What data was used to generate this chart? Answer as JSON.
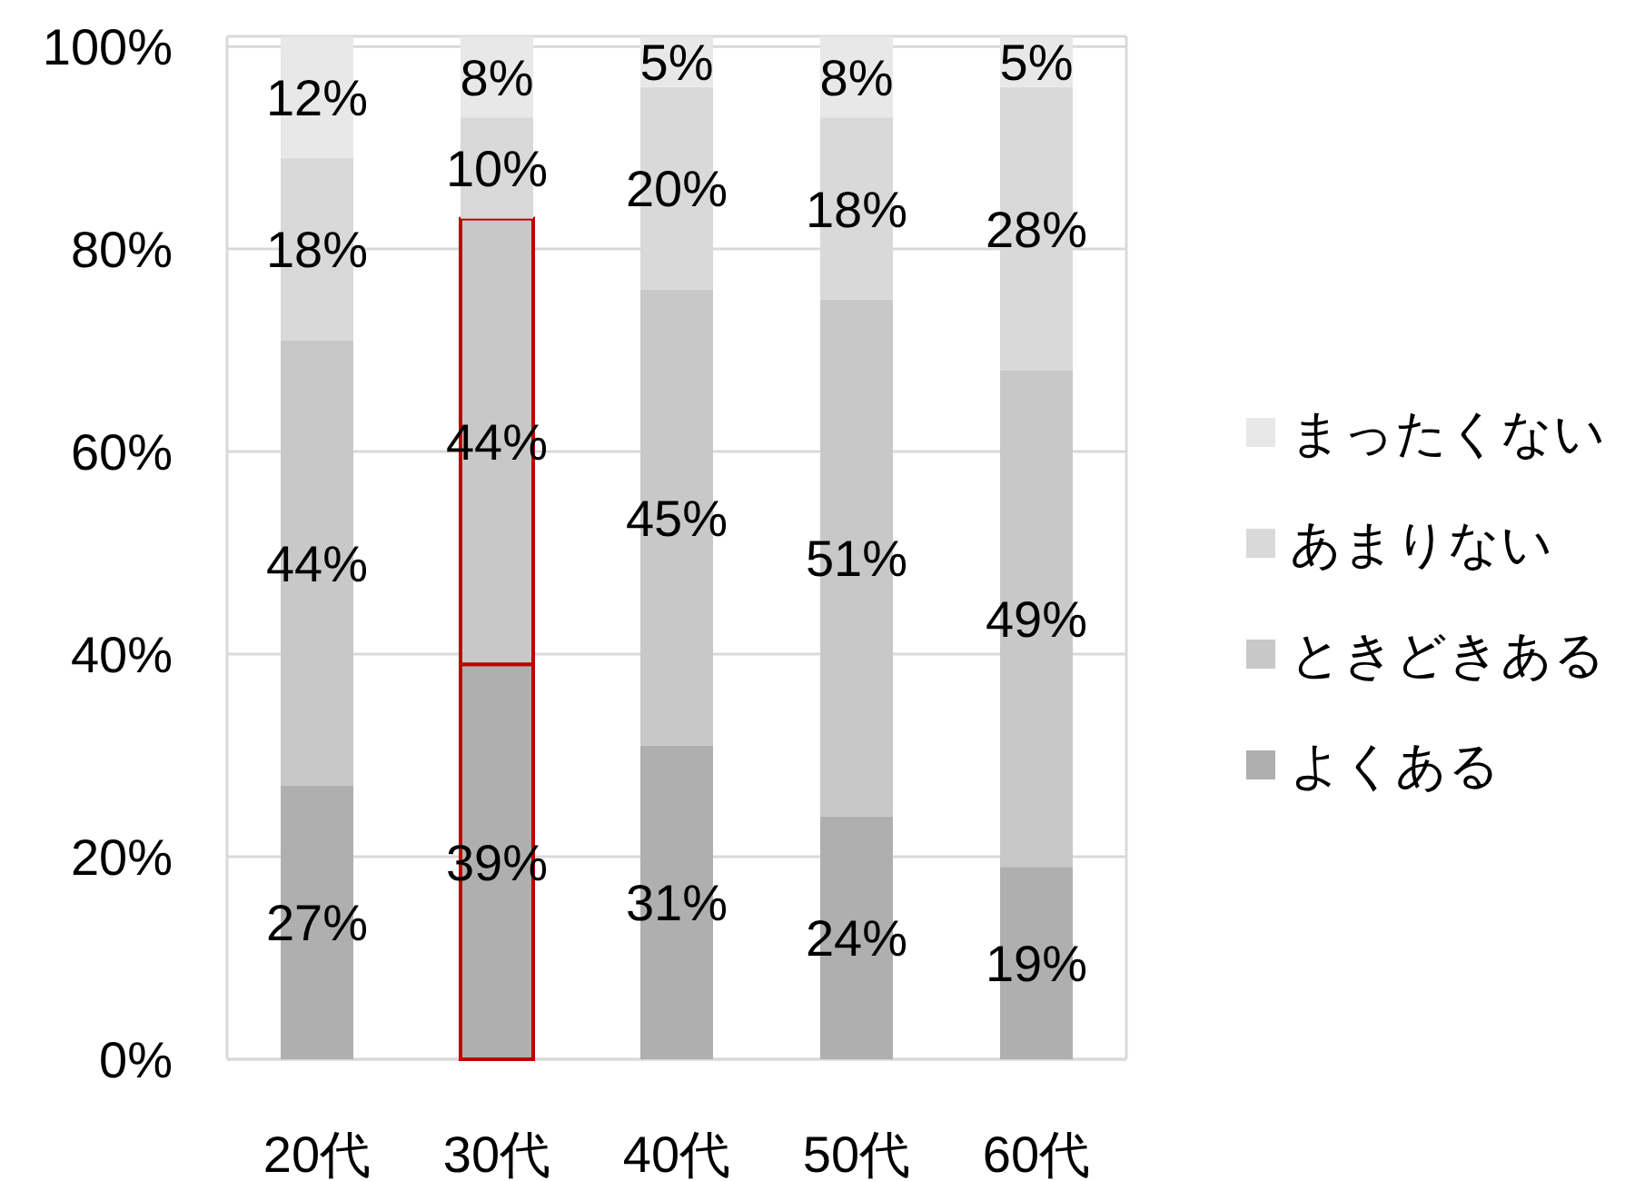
{
  "chart_data": {
    "type": "bar",
    "stacked": true,
    "categories": [
      "20代",
      "30代",
      "40代",
      "50代",
      "60代"
    ],
    "series": [
      {
        "name": "よくある",
        "color": "#afafaf",
        "values": [
          27,
          39,
          31,
          24,
          19
        ]
      },
      {
        "name": "ときどきある",
        "color": "#c8c8c8",
        "values": [
          44,
          44,
          45,
          51,
          49
        ]
      },
      {
        "name": "あまりない",
        "color": "#d9d9d9",
        "values": [
          18,
          10,
          20,
          18,
          28
        ]
      },
      {
        "name": "まったくない",
        "color": "#e8e8e8",
        "values": [
          12,
          8,
          5,
          8,
          5
        ]
      }
    ],
    "ylim": [
      0,
      101
    ],
    "yticks": [
      {
        "value": 0,
        "label": "0%"
      },
      {
        "value": 20,
        "label": "20%"
      },
      {
        "value": 40,
        "label": "40%"
      },
      {
        "value": 60,
        "label": "60%"
      },
      {
        "value": 80,
        "label": "80%"
      },
      {
        "value": 100,
        "label": "100%"
      }
    ],
    "value_labels": [
      [
        "27%",
        "39%",
        "31%",
        "24%",
        "19%"
      ],
      [
        "44%",
        "44%",
        "45%",
        "51%",
        "49%"
      ],
      [
        "18%",
        "10%",
        "20%",
        "18%",
        "28%"
      ],
      [
        "12%",
        "8%",
        "5%",
        "8%",
        "5%"
      ]
    ],
    "grid": "y",
    "legend": "right"
  }
}
